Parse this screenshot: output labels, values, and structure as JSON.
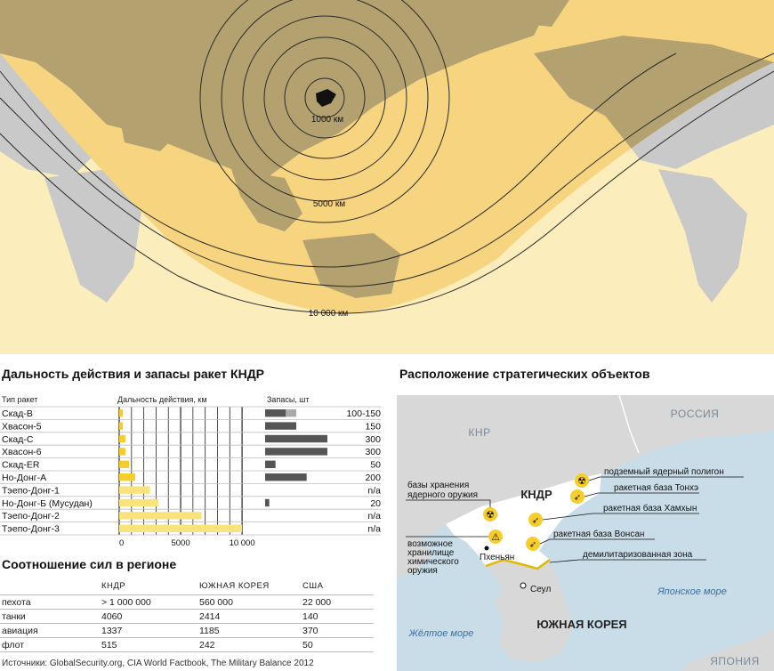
{
  "map": {
    "ring_labels": [
      "1000 км",
      "5000 км",
      "10 000 км"
    ],
    "colors": {
      "ocean": "#fcedbc",
      "land": "#c9c9c9",
      "range_band": "#f7d580",
      "range_land": "#b4a170",
      "ring": "#2b2b2b"
    }
  },
  "range_section": {
    "title": "Дальность действия и запасы ракет КНДР",
    "col_type": "Тип ракет",
    "col_range": "Дальность действия, км",
    "col_stock": "Запасы, шт"
  },
  "chart_data": {
    "type": "bar",
    "categories": [
      "Скад-B",
      "Хвасон-5",
      "Скад-C",
      "Хвасон-6",
      "Скад-ER",
      "Но-Донг-A",
      "Тэепо-Донг-1",
      "Но-Донг-Б (Мусудан)",
      "Тэепо-Донг-2",
      "Тэепо-Донг-3"
    ],
    "series": [
      {
        "name": "Дальность действия, км",
        "values": [
          300,
          300,
          500,
          500,
          800,
          1300,
          2500,
          3200,
          6700,
          10000
        ]
      },
      {
        "name": "Запасы, шт",
        "values": [
          150,
          150,
          300,
          300,
          50,
          200,
          null,
          20,
          null,
          null
        ]
      }
    ],
    "stock_labels": [
      "100-150",
      "150",
      "300",
      "300",
      "50",
      "200",
      "n/a",
      "20",
      "n/a",
      "n/a"
    ],
    "range_ticks": [
      "0",
      "5000",
      "10 000"
    ],
    "xlim": [
      0,
      10500
    ],
    "colors": {
      "range_bar": "#f6cd2a",
      "range_bar_light": "#fae27d",
      "stock_bar": "#555555",
      "stock_bar_light": "#aaaaaa"
    }
  },
  "forces": {
    "title": "Соотношение сил в регионе",
    "columns": [
      "",
      "КНДР",
      "ЮЖНАЯ КОРЕЯ",
      "США"
    ],
    "rows": [
      [
        "пехота",
        "> 1 000 000",
        "560 000",
        "22 000"
      ],
      [
        "танки",
        "4060",
        "2414",
        "140"
      ],
      [
        "авиация",
        "1337",
        "1185",
        "370"
      ],
      [
        "флот",
        "515",
        "242",
        "50"
      ]
    ]
  },
  "sources": "Источники: GlobalSecurity.org, CIA World Factbook, The Military Balance 2012",
  "sites": {
    "title": "Расположение стратегических объектов",
    "countries": {
      "china": "КНР",
      "russia": "РОССИЯ",
      "kndr": "КНДР",
      "south_korea": "ЮЖНАЯ КОРЕЯ",
      "japan": "ЯПОНИЯ"
    },
    "seas": {
      "japan_sea": "Японское море",
      "yellow_sea": "Жёлтое море"
    },
    "cities": {
      "pyongyang": "Пхеньян",
      "seoul": "Сеул"
    },
    "callouts": {
      "nuclear_storage": [
        "базы хранения",
        "ядерного оружия"
      ],
      "chemical_storage": [
        "возможное",
        "хранилище",
        "химического",
        "оружия"
      ],
      "nuclear_test_site": "подземный ядерный полигон",
      "tonghae": "ракетная база Тонхэ",
      "hamhung": "ракетная база Хамхын",
      "wonsan": "ракетная база Вонсан",
      "dmz": "демилитаризованная зона"
    },
    "colors": {
      "sea": "#c9dde9",
      "land": "#d8d8d8",
      "kndr": "#ffffff",
      "marker": "#f6cd2a",
      "dmz": "#e0b800"
    }
  }
}
